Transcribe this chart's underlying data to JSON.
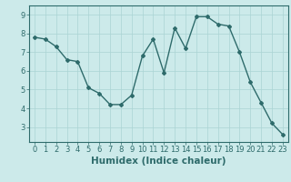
{
  "x": [
    0,
    1,
    2,
    3,
    4,
    5,
    6,
    7,
    8,
    9,
    10,
    11,
    12,
    13,
    14,
    15,
    16,
    17,
    18,
    19,
    20,
    21,
    22,
    23
  ],
  "y": [
    7.8,
    7.7,
    7.3,
    6.6,
    6.5,
    5.1,
    4.8,
    4.2,
    4.2,
    4.7,
    6.8,
    7.7,
    5.9,
    8.3,
    7.2,
    8.9,
    8.9,
    8.5,
    8.4,
    7.0,
    5.4,
    4.3,
    3.2,
    2.6
  ],
  "line_color": "#2e6b6b",
  "marker": "D",
  "marker_size": 2.0,
  "bg_color": "#cceaea",
  "grid_color": "#aad4d4",
  "xlabel": "Humidex (Indice chaleur)",
  "ylim": [
    2.2,
    9.5
  ],
  "xlim": [
    -0.5,
    23.5
  ],
  "yticks": [
    3,
    4,
    5,
    6,
    7,
    8,
    9
  ],
  "xticks": [
    0,
    1,
    2,
    3,
    4,
    5,
    6,
    7,
    8,
    9,
    10,
    11,
    12,
    13,
    14,
    15,
    16,
    17,
    18,
    19,
    20,
    21,
    22,
    23
  ],
  "tick_label_size": 6,
  "xlabel_size": 7.5,
  "line_width": 1.0
}
